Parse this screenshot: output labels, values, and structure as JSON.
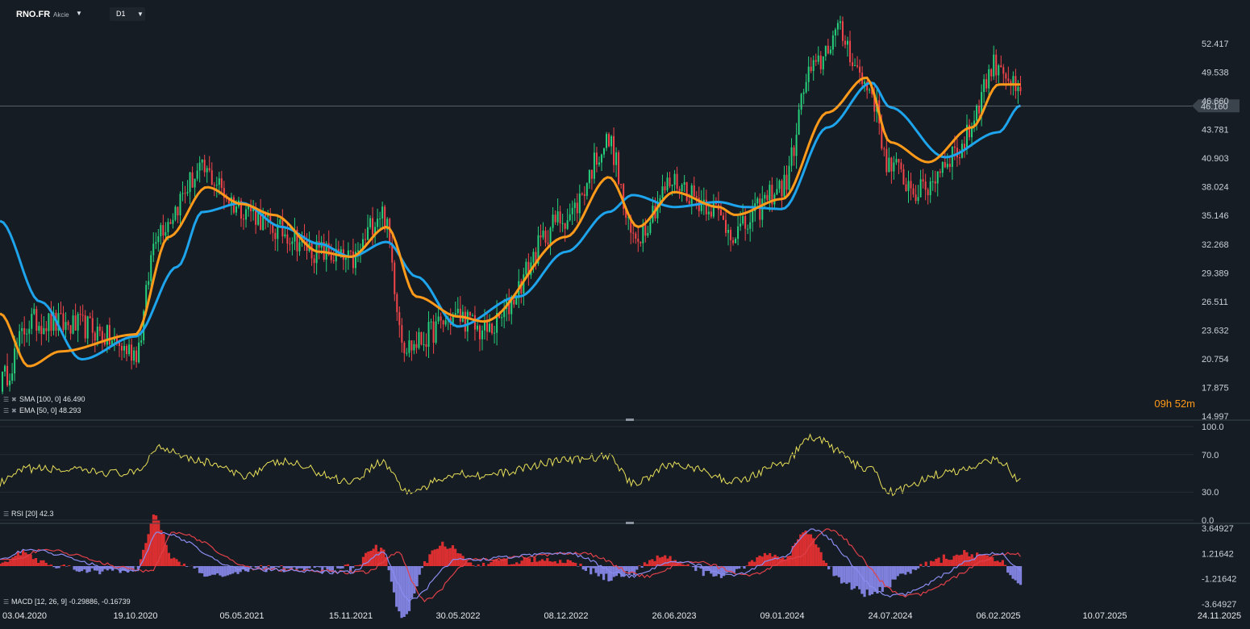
{
  "header": {
    "symbol": "RNO.FR",
    "symbol_type": "Akcie",
    "timeframe": "D1",
    "countdown": "09h 52m"
  },
  "colors": {
    "background": "#161c23",
    "up_candle": "#26d07c",
    "down_candle": "#f0454a",
    "sma": "#1ea4ec",
    "ema": "#ff9a1a",
    "rsi": "#e8e05a",
    "macd_line": "#8a8cf0",
    "macd_signal": "#e0404a",
    "macd_hist_pos": "#ee3232",
    "macd_hist_neg": "#8a8cf0",
    "price_tag_bg": "#3b434c"
  },
  "chart_data": [
    {
      "type": "candlestick",
      "name": "price",
      "x_ticks": [
        "03.04.2020",
        "19.10.2020",
        "05.05.2021",
        "15.11.2021",
        "30.05.2022",
        "08.12.2022",
        "26.06.2023",
        "09.01.2024",
        "24.07.2024",
        "06.02.2025",
        "10.07.2025",
        "24.11.2025"
      ],
      "y_ticks": [
        52.417,
        49.538,
        46.66,
        43.781,
        40.903,
        38.024,
        35.146,
        32.268,
        29.389,
        26.511,
        23.632,
        20.754,
        17.875,
        14.997
      ],
      "ylim": [
        14.997,
        52.417
      ],
      "last_price": 46.16,
      "last_price_label": "46.160",
      "grid": false,
      "close_path": [
        {
          "x": "03.04.2020",
          "y": 18.5
        },
        {
          "x": "20.05.2020",
          "y": 24.5
        },
        {
          "x": "01.08.2020",
          "y": 24.0
        },
        {
          "x": "19.10.2020",
          "y": 21.5
        },
        {
          "x": "01.12.2020",
          "y": 34.0
        },
        {
          "x": "20.02.2021",
          "y": 39.5
        },
        {
          "x": "05.05.2021",
          "y": 36.0
        },
        {
          "x": "15.07.2021",
          "y": 33.5
        },
        {
          "x": "20.09.2021",
          "y": 31.5
        },
        {
          "x": "15.11.2021",
          "y": 30.5
        },
        {
          "x": "10.01.2022",
          "y": 35.5
        },
        {
          "x": "25.02.2022",
          "y": 22.0
        },
        {
          "x": "30.05.2022",
          "y": 25.0
        },
        {
          "x": "15.07.2022",
          "y": 23.5
        },
        {
          "x": "08.12.2022",
          "y": 35.0
        },
        {
          "x": "25.02.2023",
          "y": 42.5
        },
        {
          "x": "10.04.2023",
          "y": 33.0
        },
        {
          "x": "26.06.2023",
          "y": 38.5
        },
        {
          "x": "20.08.2023",
          "y": 36.5
        },
        {
          "x": "15.10.2023",
          "y": 33.5
        },
        {
          "x": "09.01.2024",
          "y": 38.0
        },
        {
          "x": "01.03.2024",
          "y": 49.5
        },
        {
          "x": "20.04.2024",
          "y": 53.5
        },
        {
          "x": "15.06.2024",
          "y": 48.0
        },
        {
          "x": "24.07.2024",
          "y": 40.0
        },
        {
          "x": "15.09.2024",
          "y": 37.5
        },
        {
          "x": "20.11.2024",
          "y": 41.5
        },
        {
          "x": "06.02.2025",
          "y": 50.5
        },
        {
          "x": "10.03.2025",
          "y": 47.0
        }
      ],
      "series": [
        {
          "name": "SMA",
          "legend": "SMA [100, 0] 46.490",
          "points": [
            {
              "x": "03.04.2020",
              "y": 34.6
            },
            {
              "x": "01.06.2020",
              "y": 26.5
            },
            {
              "x": "01.08.2020",
              "y": 20.7
            },
            {
              "x": "19.10.2020",
              "y": 23.0
            },
            {
              "x": "05.01.2021",
              "y": 30.0
            },
            {
              "x": "20.02.2021",
              "y": 35.5
            },
            {
              "x": "05.05.2021",
              "y": 36.4
            },
            {
              "x": "15.07.2021",
              "y": 34.0
            },
            {
              "x": "20.09.2021",
              "y": 32.3
            },
            {
              "x": "15.11.2021",
              "y": 31.0
            },
            {
              "x": "20.01.2022",
              "y": 32.5
            },
            {
              "x": "15.03.2022",
              "y": 29.0
            },
            {
              "x": "30.05.2022",
              "y": 24.0
            },
            {
              "x": "15.09.2022",
              "y": 27.0
            },
            {
              "x": "08.12.2022",
              "y": 31.5
            },
            {
              "x": "25.02.2023",
              "y": 35.5
            },
            {
              "x": "10.04.2023",
              "y": 37.2
            },
            {
              "x": "26.06.2023",
              "y": 36.0
            },
            {
              "x": "15.09.2023",
              "y": 36.5
            },
            {
              "x": "01.11.2023",
              "y": 36.0
            },
            {
              "x": "09.01.2024",
              "y": 35.8
            },
            {
              "x": "01.04.2024",
              "y": 44.0
            },
            {
              "x": "20.06.2024",
              "y": 48.5
            },
            {
              "x": "24.07.2024",
              "y": 46.0
            },
            {
              "x": "01.11.2024",
              "y": 41.0
            },
            {
              "x": "06.02.2025",
              "y": 43.5
            },
            {
              "x": "10.03.2025",
              "y": 46.2
            }
          ]
        },
        {
          "name": "EMA",
          "legend": "EMA [50, 0] 48.293",
          "points": [
            {
              "x": "03.04.2020",
              "y": 25.3
            },
            {
              "x": "15.05.2020",
              "y": 20.0
            },
            {
              "x": "01.07.2020",
              "y": 21.5
            },
            {
              "x": "19.10.2020",
              "y": 23.2
            },
            {
              "x": "20.12.2020",
              "y": 33.0
            },
            {
              "x": "01.03.2021",
              "y": 38.0
            },
            {
              "x": "05.05.2021",
              "y": 36.3
            },
            {
              "x": "01.07.2021",
              "y": 35.2
            },
            {
              "x": "20.09.2021",
              "y": 31.5
            },
            {
              "x": "15.11.2021",
              "y": 31.0
            },
            {
              "x": "20.01.2022",
              "y": 34.0
            },
            {
              "x": "15.03.2022",
              "y": 27.0
            },
            {
              "x": "30.05.2022",
              "y": 25.0
            },
            {
              "x": "15.07.2022",
              "y": 24.5
            },
            {
              "x": "08.12.2022",
              "y": 33.0
            },
            {
              "x": "25.02.2023",
              "y": 39.0
            },
            {
              "x": "20.04.2023",
              "y": 34.0
            },
            {
              "x": "26.06.2023",
              "y": 37.5
            },
            {
              "x": "15.09.2023",
              "y": 36.0
            },
            {
              "x": "15.10.2023",
              "y": 35.2
            },
            {
              "x": "09.01.2024",
              "y": 36.8
            },
            {
              "x": "01.04.2024",
              "y": 45.5
            },
            {
              "x": "10.06.2024",
              "y": 49.0
            },
            {
              "x": "24.07.2024",
              "y": 42.5
            },
            {
              "x": "01.10.2024",
              "y": 40.5
            },
            {
              "x": "20.12.2024",
              "y": 44.0
            },
            {
              "x": "06.02.2025",
              "y": 48.3
            },
            {
              "x": "10.03.2025",
              "y": 48.3
            }
          ]
        }
      ]
    },
    {
      "type": "line",
      "name": "RSI",
      "legend": "RSI [20] 42.3",
      "y_ticks": [
        100.0,
        70.0,
        30.0,
        0.0
      ],
      "y_tick_labels": [
        "100.0",
        "70.0",
        "30.0",
        "0.0"
      ],
      "ylim": [
        0,
        100
      ],
      "points": [
        {
          "x": "03.04.2020",
          "y": 40
        },
        {
          "x": "15.05.2020",
          "y": 55
        },
        {
          "x": "19.10.2020",
          "y": 50
        },
        {
          "x": "01.12.2020",
          "y": 78
        },
        {
          "x": "01.03.2021",
          "y": 62
        },
        {
          "x": "05.05.2021",
          "y": 48
        },
        {
          "x": "15.07.2021",
          "y": 62
        },
        {
          "x": "15.11.2021",
          "y": 42
        },
        {
          "x": "10.01.2022",
          "y": 62
        },
        {
          "x": "01.03.2022",
          "y": 30
        },
        {
          "x": "30.05.2022",
          "y": 50
        },
        {
          "x": "15.07.2022",
          "y": 48
        },
        {
          "x": "08.12.2022",
          "y": 64
        },
        {
          "x": "25.02.2023",
          "y": 68
        },
        {
          "x": "10.04.2023",
          "y": 40
        },
        {
          "x": "26.06.2023",
          "y": 60
        },
        {
          "x": "15.10.2023",
          "y": 42
        },
        {
          "x": "09.01.2024",
          "y": 60
        },
        {
          "x": "01.03.2024",
          "y": 88
        },
        {
          "x": "15.06.2024",
          "y": 55
        },
        {
          "x": "24.07.2024",
          "y": 30
        },
        {
          "x": "01.11.2024",
          "y": 50
        },
        {
          "x": "06.02.2025",
          "y": 65
        },
        {
          "x": "10.03.2025",
          "y": 42.3
        }
      ]
    },
    {
      "type": "macd",
      "name": "MACD",
      "legend": "MACD [12, 26, 9] -0.29886, -0.16739",
      "y_ticks": [
        3.64927,
        1.21642,
        -1.21642,
        -3.64927
      ],
      "y_tick_labels": [
        "3.64927",
        "1.21642",
        "-1.21642",
        "-3.64927"
      ],
      "ylim": [
        -3.64927,
        3.64927
      ],
      "macd_line": -0.29886,
      "signal_line": -0.16739,
      "points": [
        {
          "x": "03.04.2020",
          "y": 0.8
        },
        {
          "x": "15.05.2020",
          "y": 1.5
        },
        {
          "x": "19.10.2020",
          "y": -0.5
        },
        {
          "x": "01.12.2020",
          "y": 3.3
        },
        {
          "x": "05.05.2021",
          "y": -0.3
        },
        {
          "x": "15.11.2021",
          "y": -0.6
        },
        {
          "x": "10.01.2022",
          "y": 1.3
        },
        {
          "x": "01.03.2022",
          "y": -3.3
        },
        {
          "x": "30.05.2022",
          "y": 0.6
        },
        {
          "x": "08.12.2022",
          "y": 1.2
        },
        {
          "x": "10.04.2023",
          "y": -1.0
        },
        {
          "x": "26.06.2023",
          "y": 0.5
        },
        {
          "x": "15.10.2023",
          "y": -0.8
        },
        {
          "x": "09.01.2024",
          "y": 0.8
        },
        {
          "x": "01.03.2024",
          "y": 3.5
        },
        {
          "x": "24.07.2024",
          "y": -2.9
        },
        {
          "x": "06.02.2025",
          "y": 1.3
        },
        {
          "x": "10.03.2025",
          "y": -0.3
        }
      ]
    }
  ]
}
